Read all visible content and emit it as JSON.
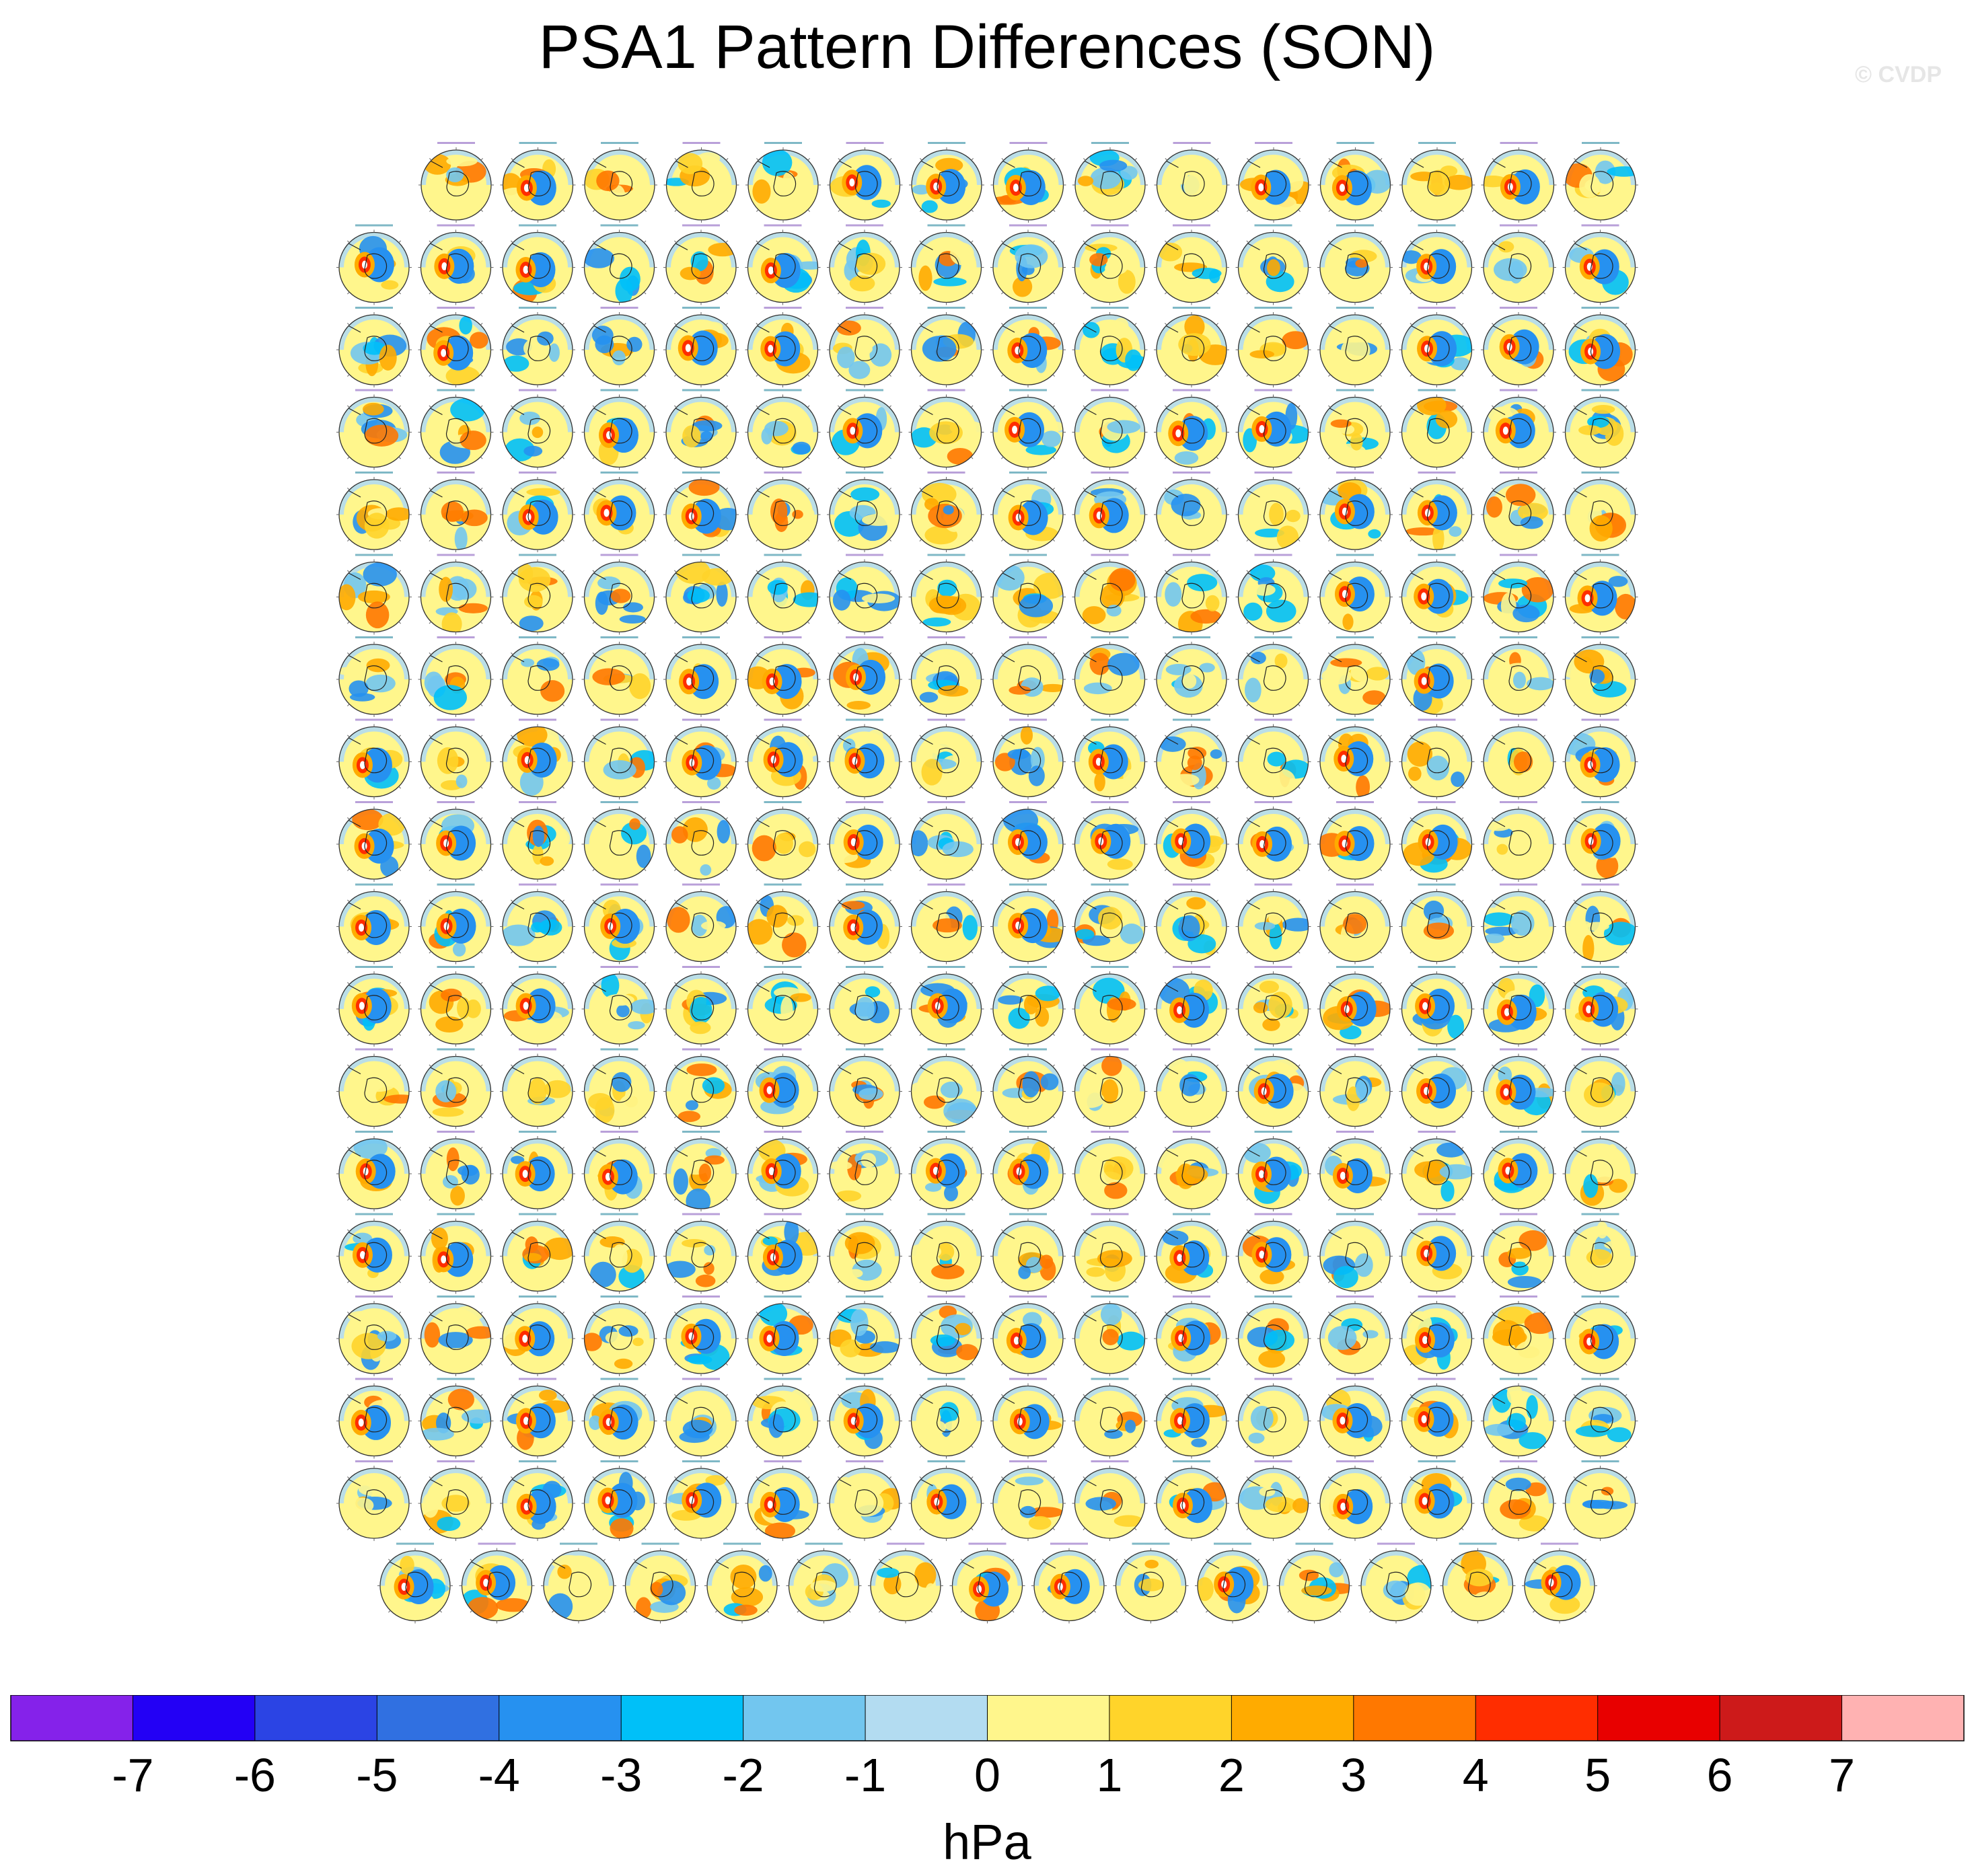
{
  "title": "PSA1 Pattern Differences (SON)",
  "watermark": "© CVDP",
  "chart_data": {
    "type": "heatmap",
    "title": "PSA1 Pattern Differences (SON)",
    "description_units": "hPa",
    "layout": {
      "rows": 18,
      "panels_per_row": [
        15,
        16,
        16,
        16,
        16,
        16,
        16,
        16,
        16,
        16,
        16,
        16,
        16,
        16,
        16,
        16,
        16,
        15
      ],
      "total_panels": 286
    },
    "colorbar": {
      "label": "hPa",
      "ticks": [
        "-7",
        "-6",
        "-5",
        "-4",
        "-3",
        "-2",
        "-1",
        "0",
        "1",
        "2",
        "3",
        "4",
        "5",
        "6",
        "7"
      ],
      "colors": [
        "#8522ea",
        "#2300f5",
        "#2b44e4",
        "#3070e1",
        "#2691f0",
        "#00c0f8",
        "#72c6ef",
        "#b3dcf1",
        "#fff68c",
        "#ffd42a",
        "#ffab00",
        "#ff7800",
        "#ff2d00",
        "#e80000",
        "#cd1a1a",
        "#ffb2b2"
      ]
    }
  }
}
